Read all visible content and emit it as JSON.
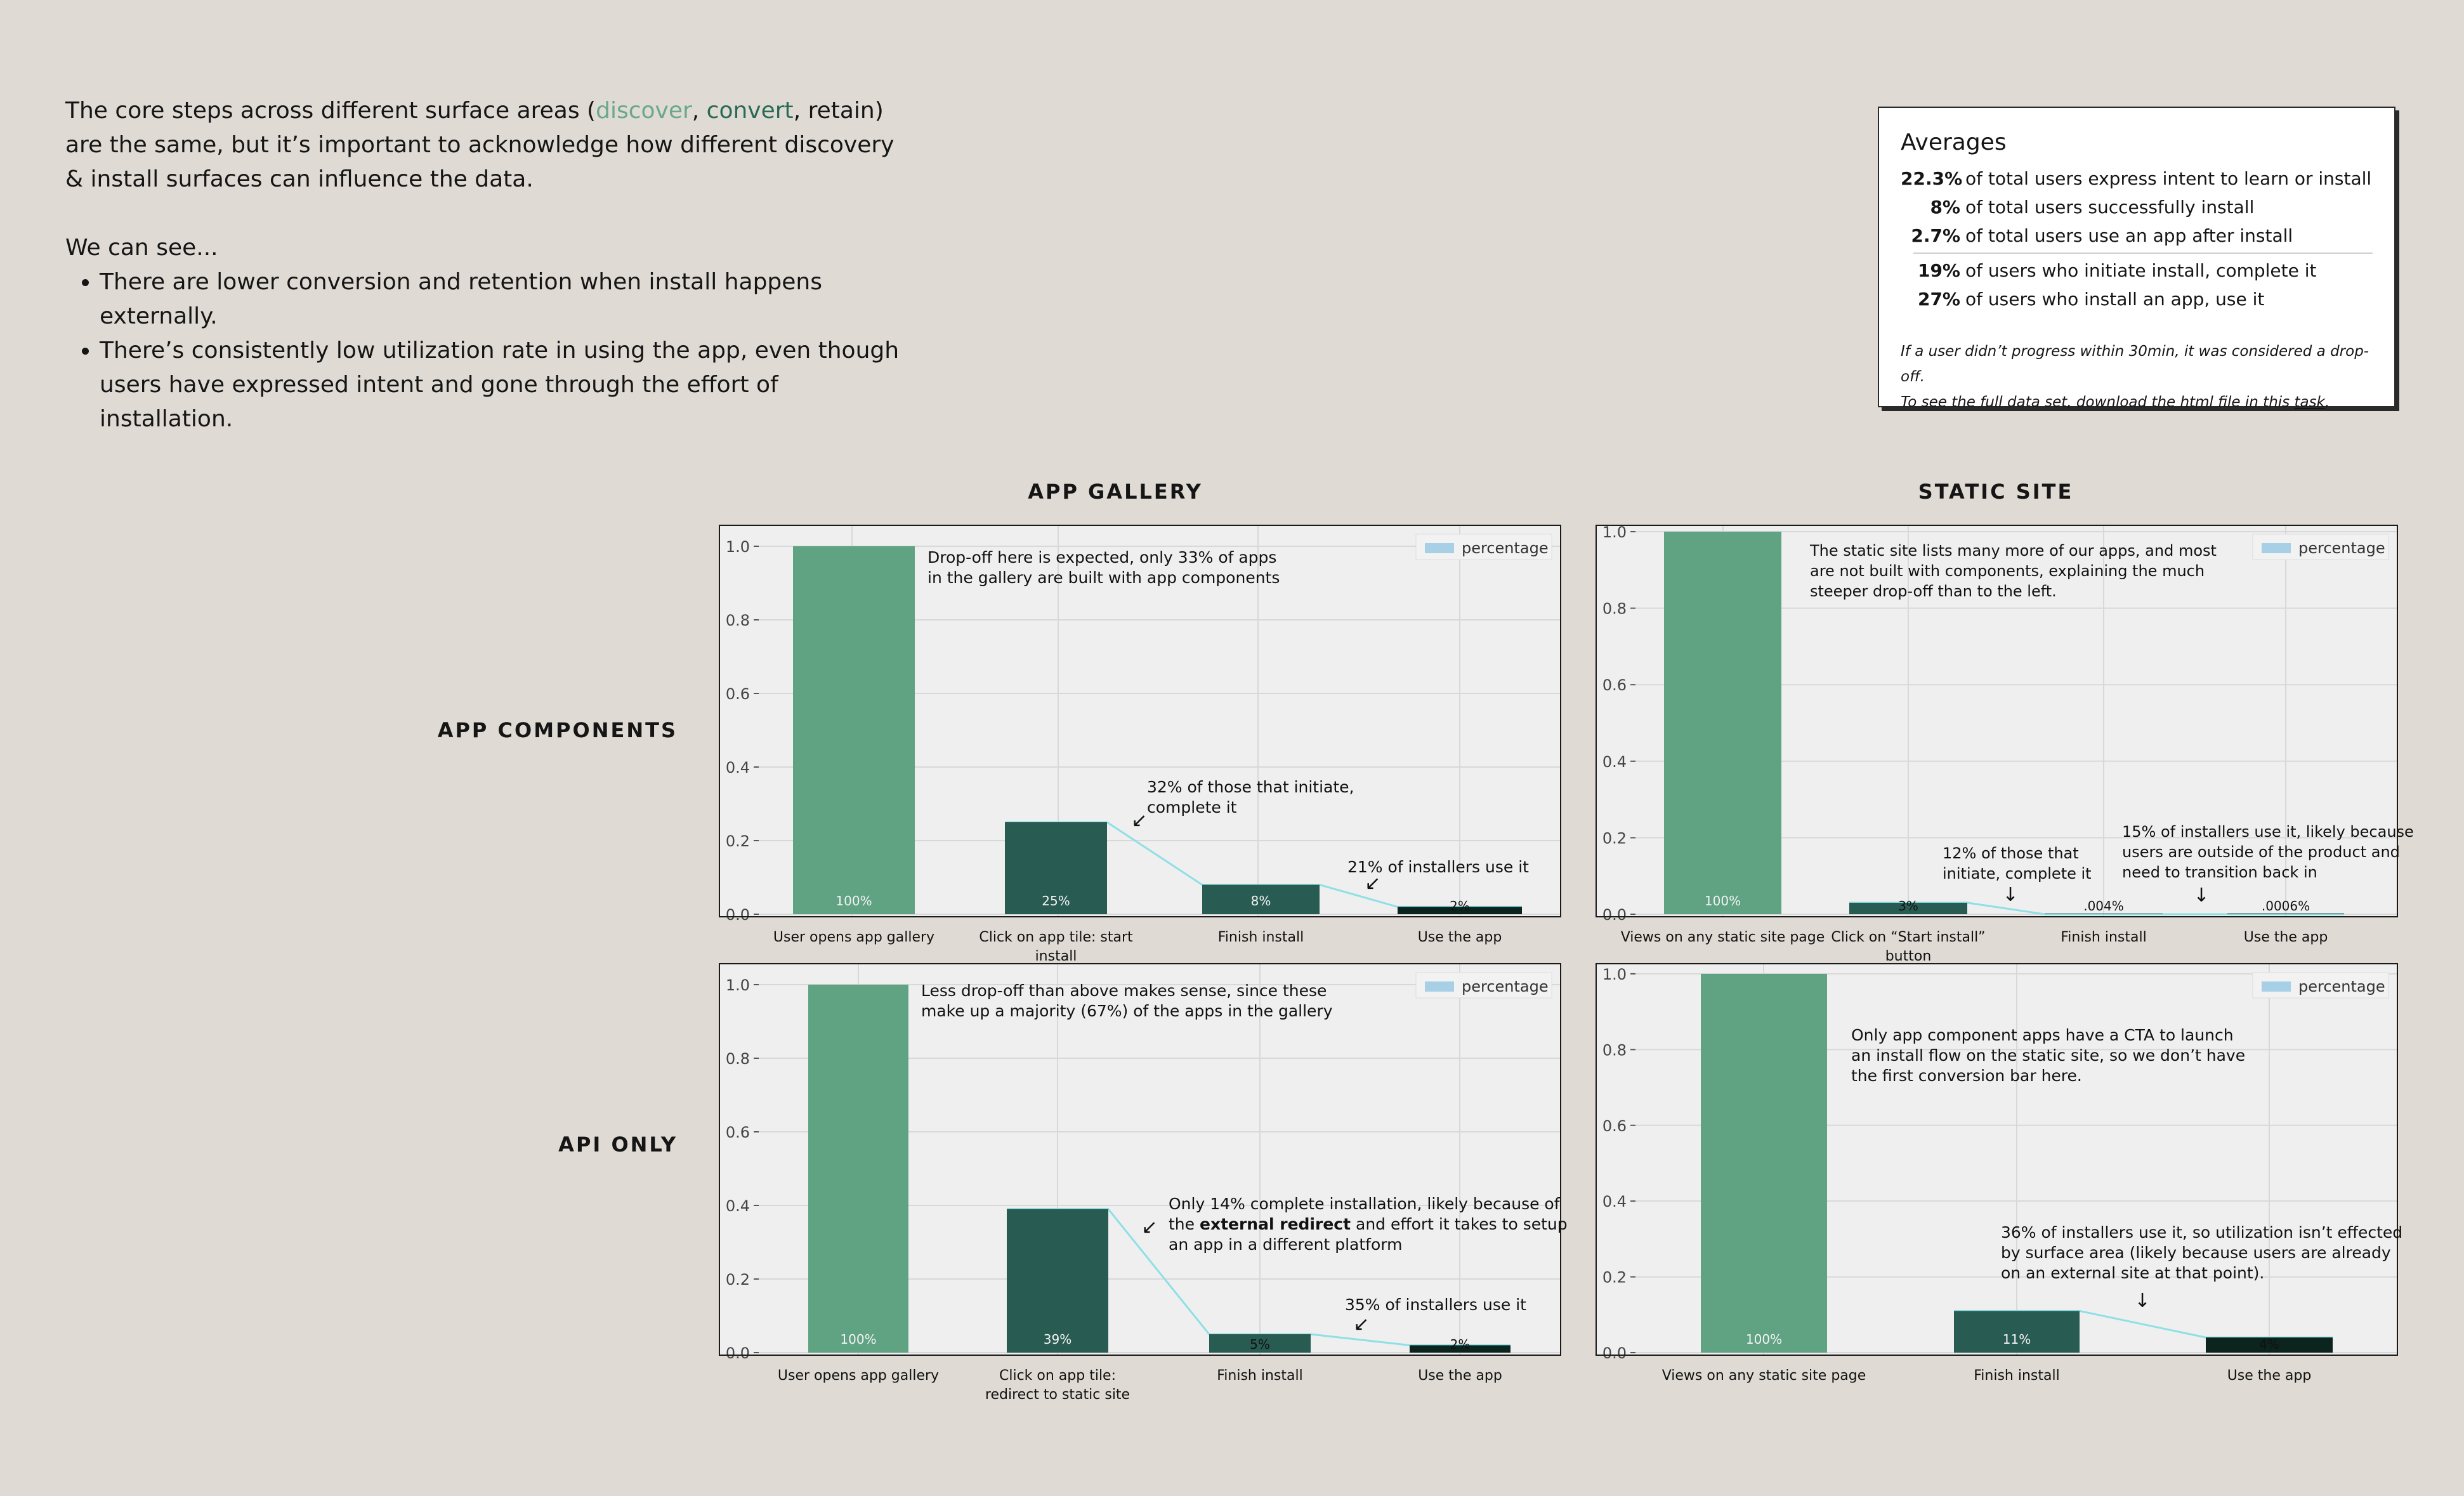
{
  "intro": {
    "line1_pre": "The core steps across different surface areas (",
    "discover": "discover",
    "comma1": ", ",
    "convert": "convert",
    "comma2": ", ",
    "retain": "retain",
    "line1_post": ") are the same, but it’s important to acknowledge how different discovery & install surfaces can influence the data.",
    "we_can_see": "We can see...",
    "bullets": [
      "There are lower conversion and retention when install happens externally.",
      "There’s consistently low utilization rate in using the app, even though users have expressed intent and gone through the effort of installation."
    ]
  },
  "averages": {
    "title": "Averages",
    "rows": [
      {
        "value": "22.3%",
        "text": "of total users express intent to learn or install"
      },
      {
        "value": "8%",
        "text": "of total users successfully install"
      },
      {
        "value": "2.7%",
        "text": "of total users use an app after install"
      },
      {
        "value": "19%",
        "text": "of users who initiate install, complete it"
      },
      {
        "value": "27%",
        "text": "of users who install an app, use it"
      }
    ],
    "note1": "If a user didn’t progress within 30min, it was considered a drop-off.",
    "note2_pre": "To see the full data set, download the html file in this ",
    "note2_link": "task",
    "note2_post": "."
  },
  "column_headers": [
    "APP GALLERY",
    "STATIC SITE"
  ],
  "row_headers": [
    "APP COMPONENTS",
    "API ONLY"
  ],
  "colors": {
    "first_bar": "#5fa383",
    "mid_bar": "#285b52",
    "last_bar": "#0b241e",
    "connector": "#8ee0e6",
    "legend_swatch": "#a7cfe6",
    "plot_bg": "#efefef"
  },
  "chart_data": [
    {
      "type": "bar",
      "yticks": [
        "0.0",
        "0.2",
        "0.4",
        "0.6",
        "0.8",
        "1.0"
      ],
      "ylim": [
        0,
        1.05
      ],
      "legend": "percentage",
      "legend_position": "top-right",
      "grid": true,
      "categories": [
        [
          "User opens app gallery"
        ],
        [
          "Click on app tile: start",
          "install"
        ],
        [
          "Finish install"
        ],
        [
          "Use the app"
        ]
      ],
      "values": [
        1.0,
        0.25,
        0.08,
        0.02
      ],
      "labels": [
        "100%",
        "25%",
        "8%",
        "2%"
      ],
      "annotations": [
        {
          "lines": [
            "Drop-off here is expected, only 33% of apps",
            "in the gallery are built with app components"
          ]
        },
        {
          "lines": [
            "32% of those that initiate,",
            "complete it"
          ],
          "arrow": "↙"
        },
        {
          "lines": [
            "21% of installers use it"
          ],
          "arrow": "↙"
        }
      ]
    },
    {
      "type": "bar",
      "yticks": [
        "0.0",
        "0.2",
        "0.4",
        "0.6",
        "0.8",
        "1.0"
      ],
      "ylim": [
        0,
        1.01
      ],
      "legend": "percentage",
      "legend_position": "top-right",
      "grid": true,
      "categories": [
        [
          "Views on any static site page"
        ],
        [
          "Click on “Start install”",
          "button"
        ],
        [
          "Finish install"
        ],
        [
          "Use the app"
        ]
      ],
      "values": [
        1.0,
        0.03,
        4e-05,
        6e-06
      ],
      "labels": [
        "100%",
        "3%",
        ".004%",
        ".0006%"
      ],
      "annotations": [
        {
          "lines": [
            "The static site lists many more of our apps, and most",
            "are not built with components, explaining the much",
            "steeper drop-off than to the left."
          ]
        },
        {
          "lines": [
            "12% of those that",
            "initiate, complete it"
          ],
          "arrow": "↓"
        },
        {
          "lines": [
            "15% of installers use it, likely because",
            "users are outside of the product and",
            "need to transition back in"
          ],
          "arrow": "↓"
        }
      ]
    },
    {
      "type": "bar",
      "yticks": [
        "0.0",
        "0.2",
        "0.4",
        "0.6",
        "0.8",
        "1.0"
      ],
      "ylim": [
        0,
        1.05
      ],
      "legend": "percentage",
      "legend_position": "top-right",
      "grid": true,
      "categories": [
        [
          "User opens app gallery"
        ],
        [
          "Click on app tile:",
          "redirect to static site"
        ],
        [
          "Finish install"
        ],
        [
          "Use the app"
        ]
      ],
      "values": [
        1.0,
        0.39,
        0.05,
        0.02
      ],
      "labels": [
        "100%",
        "39%",
        "5%",
        "2%"
      ],
      "annotations": [
        {
          "lines": [
            "Less drop-off than above makes sense, since these",
            "make up a majority (67%) of the apps in the gallery"
          ]
        },
        {
          "lines": [
            "Only 14% complete installation, likely because of",
            "the |external redirect| and effort it takes to setup",
            "an app in a different platform"
          ],
          "arrow": "↙"
        },
        {
          "lines": [
            "35% of installers use it"
          ],
          "arrow": "↙"
        }
      ]
    },
    {
      "type": "bar",
      "yticks": [
        "0.0",
        "0.2",
        "0.4",
        "0.6",
        "0.8",
        "1.0"
      ],
      "ylim": [
        0,
        1.02
      ],
      "legend": "percentage",
      "legend_position": "top-right",
      "grid": true,
      "categories": [
        [
          "Views on any static site page"
        ],
        [
          "Finish install"
        ],
        [
          "Use the app"
        ]
      ],
      "values": [
        1.0,
        0.11,
        0.04
      ],
      "labels": [
        "100%",
        "11%",
        "4%"
      ],
      "annotations": [
        {
          "lines": [
            "Only app component apps have a CTA to launch",
            "an install flow on the static site, so we don’t have",
            "the first conversion bar here."
          ]
        },
        {
          "lines": [
            "36% of installers use it, so utilization isn’t effected",
            "by surface area (likely because users are already",
            "on an external site at that point)."
          ],
          "arrow": "↓"
        }
      ]
    }
  ]
}
